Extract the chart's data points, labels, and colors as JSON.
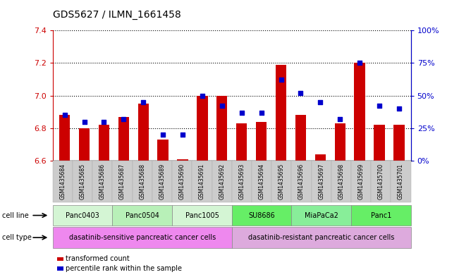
{
  "title": "GDS5627 / ILMN_1661458",
  "samples": [
    "GSM1435684",
    "GSM1435685",
    "GSM1435686",
    "GSM1435687",
    "GSM1435688",
    "GSM1435689",
    "GSM1435690",
    "GSM1435691",
    "GSM1435692",
    "GSM1435693",
    "GSM1435694",
    "GSM1435695",
    "GSM1435696",
    "GSM1435697",
    "GSM1435698",
    "GSM1435699",
    "GSM1435700",
    "GSM1435701"
  ],
  "transformed_count": [
    6.88,
    6.8,
    6.82,
    6.87,
    6.95,
    6.73,
    6.61,
    7.0,
    7.0,
    6.83,
    6.84,
    7.19,
    6.88,
    6.64,
    6.83,
    7.2,
    6.82,
    6.82
  ],
  "percentile_rank": [
    35,
    30,
    30,
    32,
    45,
    20,
    20,
    50,
    42,
    37,
    37,
    62,
    52,
    45,
    32,
    75,
    42,
    40
  ],
  "ylim": [
    6.6,
    7.4
  ],
  "yticks": [
    6.6,
    6.8,
    7.0,
    7.2,
    7.4
  ],
  "y2lim": [
    0,
    100
  ],
  "y2ticks": [
    0,
    25,
    50,
    75,
    100
  ],
  "y2ticklabels": [
    "0%",
    "25%",
    "50%",
    "75%",
    "100%"
  ],
  "bar_color": "#cc0000",
  "dot_color": "#0000cc",
  "bar_bottom": 6.6,
  "cell_lines": [
    {
      "name": "Panc0403",
      "start": 0,
      "end": 3,
      "color": "#d4f5d4"
    },
    {
      "name": "Panc0504",
      "start": 3,
      "end": 6,
      "color": "#b8f0b8"
    },
    {
      "name": "Panc1005",
      "start": 6,
      "end": 9,
      "color": "#d4f5d4"
    },
    {
      "name": "SU8686",
      "start": 9,
      "end": 12,
      "color": "#66ee66"
    },
    {
      "name": "MiaPaCa2",
      "start": 12,
      "end": 15,
      "color": "#88ee99"
    },
    {
      "name": "Panc1",
      "start": 15,
      "end": 18,
      "color": "#66ee66"
    }
  ],
  "cell_types": [
    {
      "name": "dasatinib-sensitive pancreatic cancer cells",
      "start": 0,
      "end": 9,
      "color": "#ee88ee"
    },
    {
      "name": "dasatinib-resistant pancreatic cancer cells",
      "start": 9,
      "end": 18,
      "color": "#ddaadd"
    }
  ],
  "legend_bar_label": "transformed count",
  "legend_dot_label": "percentile rank within the sample",
  "bar_label_color": "#cc0000",
  "y2label_color": "#0000cc",
  "xtick_bg": "#cccccc"
}
